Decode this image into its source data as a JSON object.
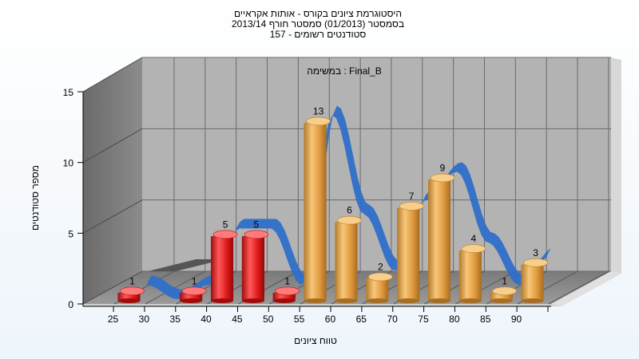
{
  "chart_data": {
    "type": "bar",
    "title_lines": [
      "היסטוגרמת ציונים בקורס - אותות אקראיים",
      "בסמסטר (01/2013) סמסטר חורף 2013/14",
      "סטודנטים רשומים - 157"
    ],
    "subtitle": "Final_B : במשימה",
    "xlabel": "טווח ציונים",
    "ylabel": "מספר סטודנטים",
    "ylim": [
      0,
      15
    ],
    "yticks": [
      0,
      5,
      10,
      15
    ],
    "categories": [
      "25",
      "30",
      "35",
      "40",
      "45",
      "50",
      "55",
      "60",
      "65",
      "70",
      "75",
      "80",
      "85",
      "90"
    ],
    "values": [
      1,
      0,
      1,
      5,
      5,
      1,
      13,
      6,
      2,
      7,
      9,
      4,
      1,
      3
    ],
    "fail_color": "#e02020",
    "pass_color": "#e8a040",
    "fail_count": 6,
    "curve_color": "#2f6fc8",
    "grid": true
  }
}
